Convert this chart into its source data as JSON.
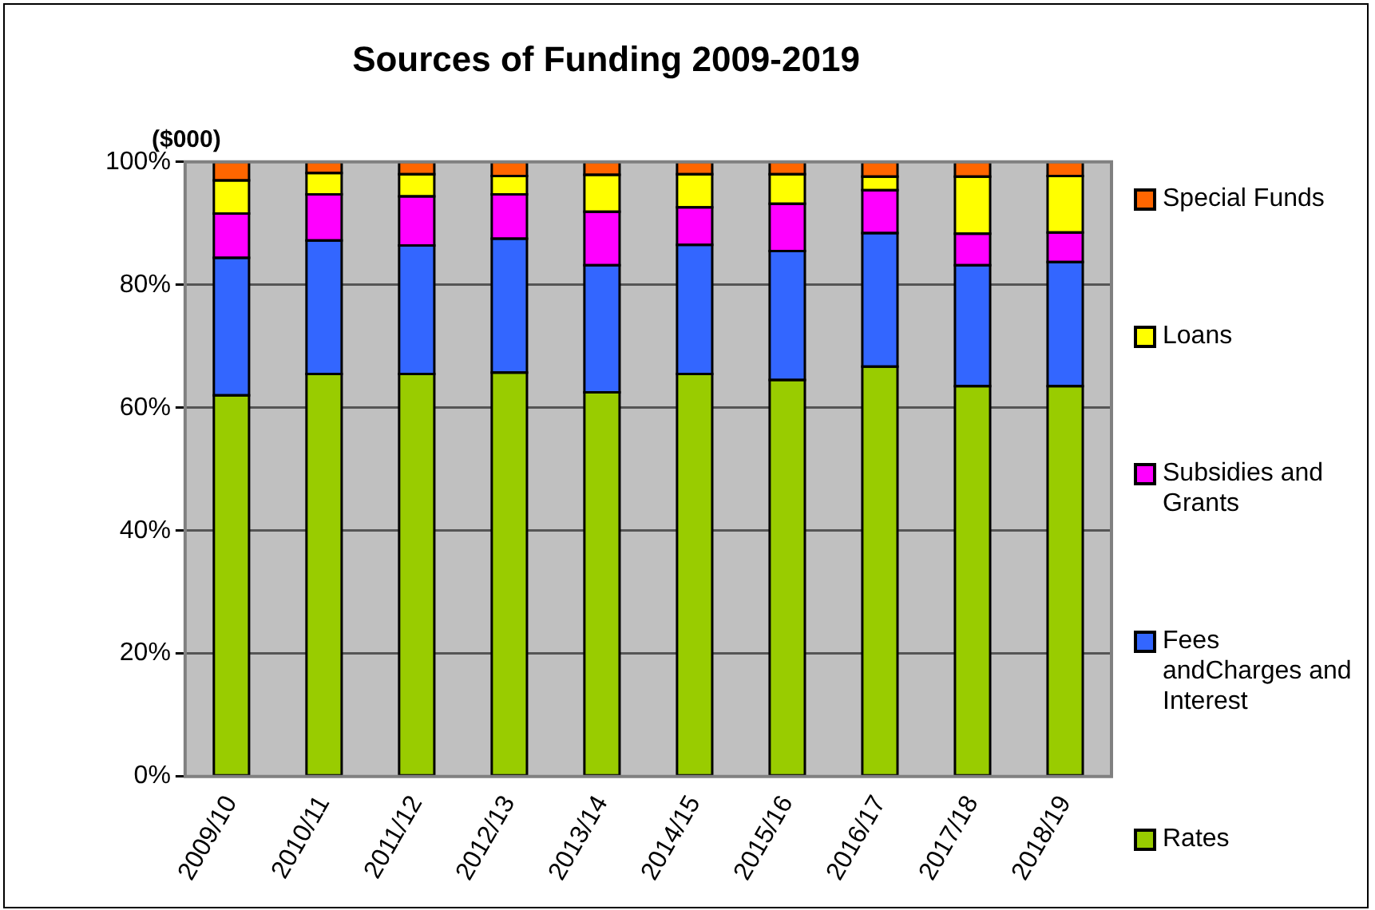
{
  "chart_data": {
    "type": "bar",
    "title": "Sources of Funding 2009-2019",
    "ylabel": "($000)",
    "stacked": true,
    "grid": "y",
    "legend": "right",
    "categories": [
      "2009/10",
      "2010/11",
      "2011/12",
      "2012/13",
      "2013/14",
      "2014/15",
      "2015/16",
      "2016/17",
      "2017/18",
      "2018/19"
    ],
    "ylim": [
      0,
      100
    ],
    "yticks": [
      {
        "value": 0,
        "label": "0%"
      },
      {
        "value": 20,
        "label": "20%"
      },
      {
        "value": 40,
        "label": "40%"
      },
      {
        "value": 60,
        "label": "60%"
      },
      {
        "value": 80,
        "label": "80%"
      },
      {
        "value": 100,
        "label": "100%"
      }
    ],
    "series": [
      {
        "name": "Rates",
        "color": "#99cc00",
        "values": [
          62,
          65.5,
          65.5,
          65.7,
          62.5,
          65.5,
          64.5,
          66.7,
          63.5,
          63.5
        ]
      },
      {
        "name": "Fees andCharges and Interest",
        "color": "#3366ff",
        "values": [
          22.4,
          21.7,
          20.9,
          21.8,
          20.7,
          21,
          21,
          21.7,
          19.7,
          20.2
        ]
      },
      {
        "name": "Subsidies and Grants",
        "color": "#ff00ff",
        "values": [
          7.2,
          7.5,
          8,
          7.2,
          8.7,
          6.1,
          7.7,
          7,
          5.1,
          4.8
        ]
      },
      {
        "name": "Loans",
        "color": "#ffff00",
        "values": [
          5.4,
          3.5,
          3.6,
          3,
          6,
          5.4,
          4.8,
          2.2,
          9.3,
          9.2
        ]
      },
      {
        "name": "Special Funds",
        "color": "#ff6600",
        "values": [
          3,
          1.8,
          2,
          2.3,
          2.1,
          2,
          2,
          2.4,
          2.4,
          2.3
        ]
      }
    ]
  }
}
